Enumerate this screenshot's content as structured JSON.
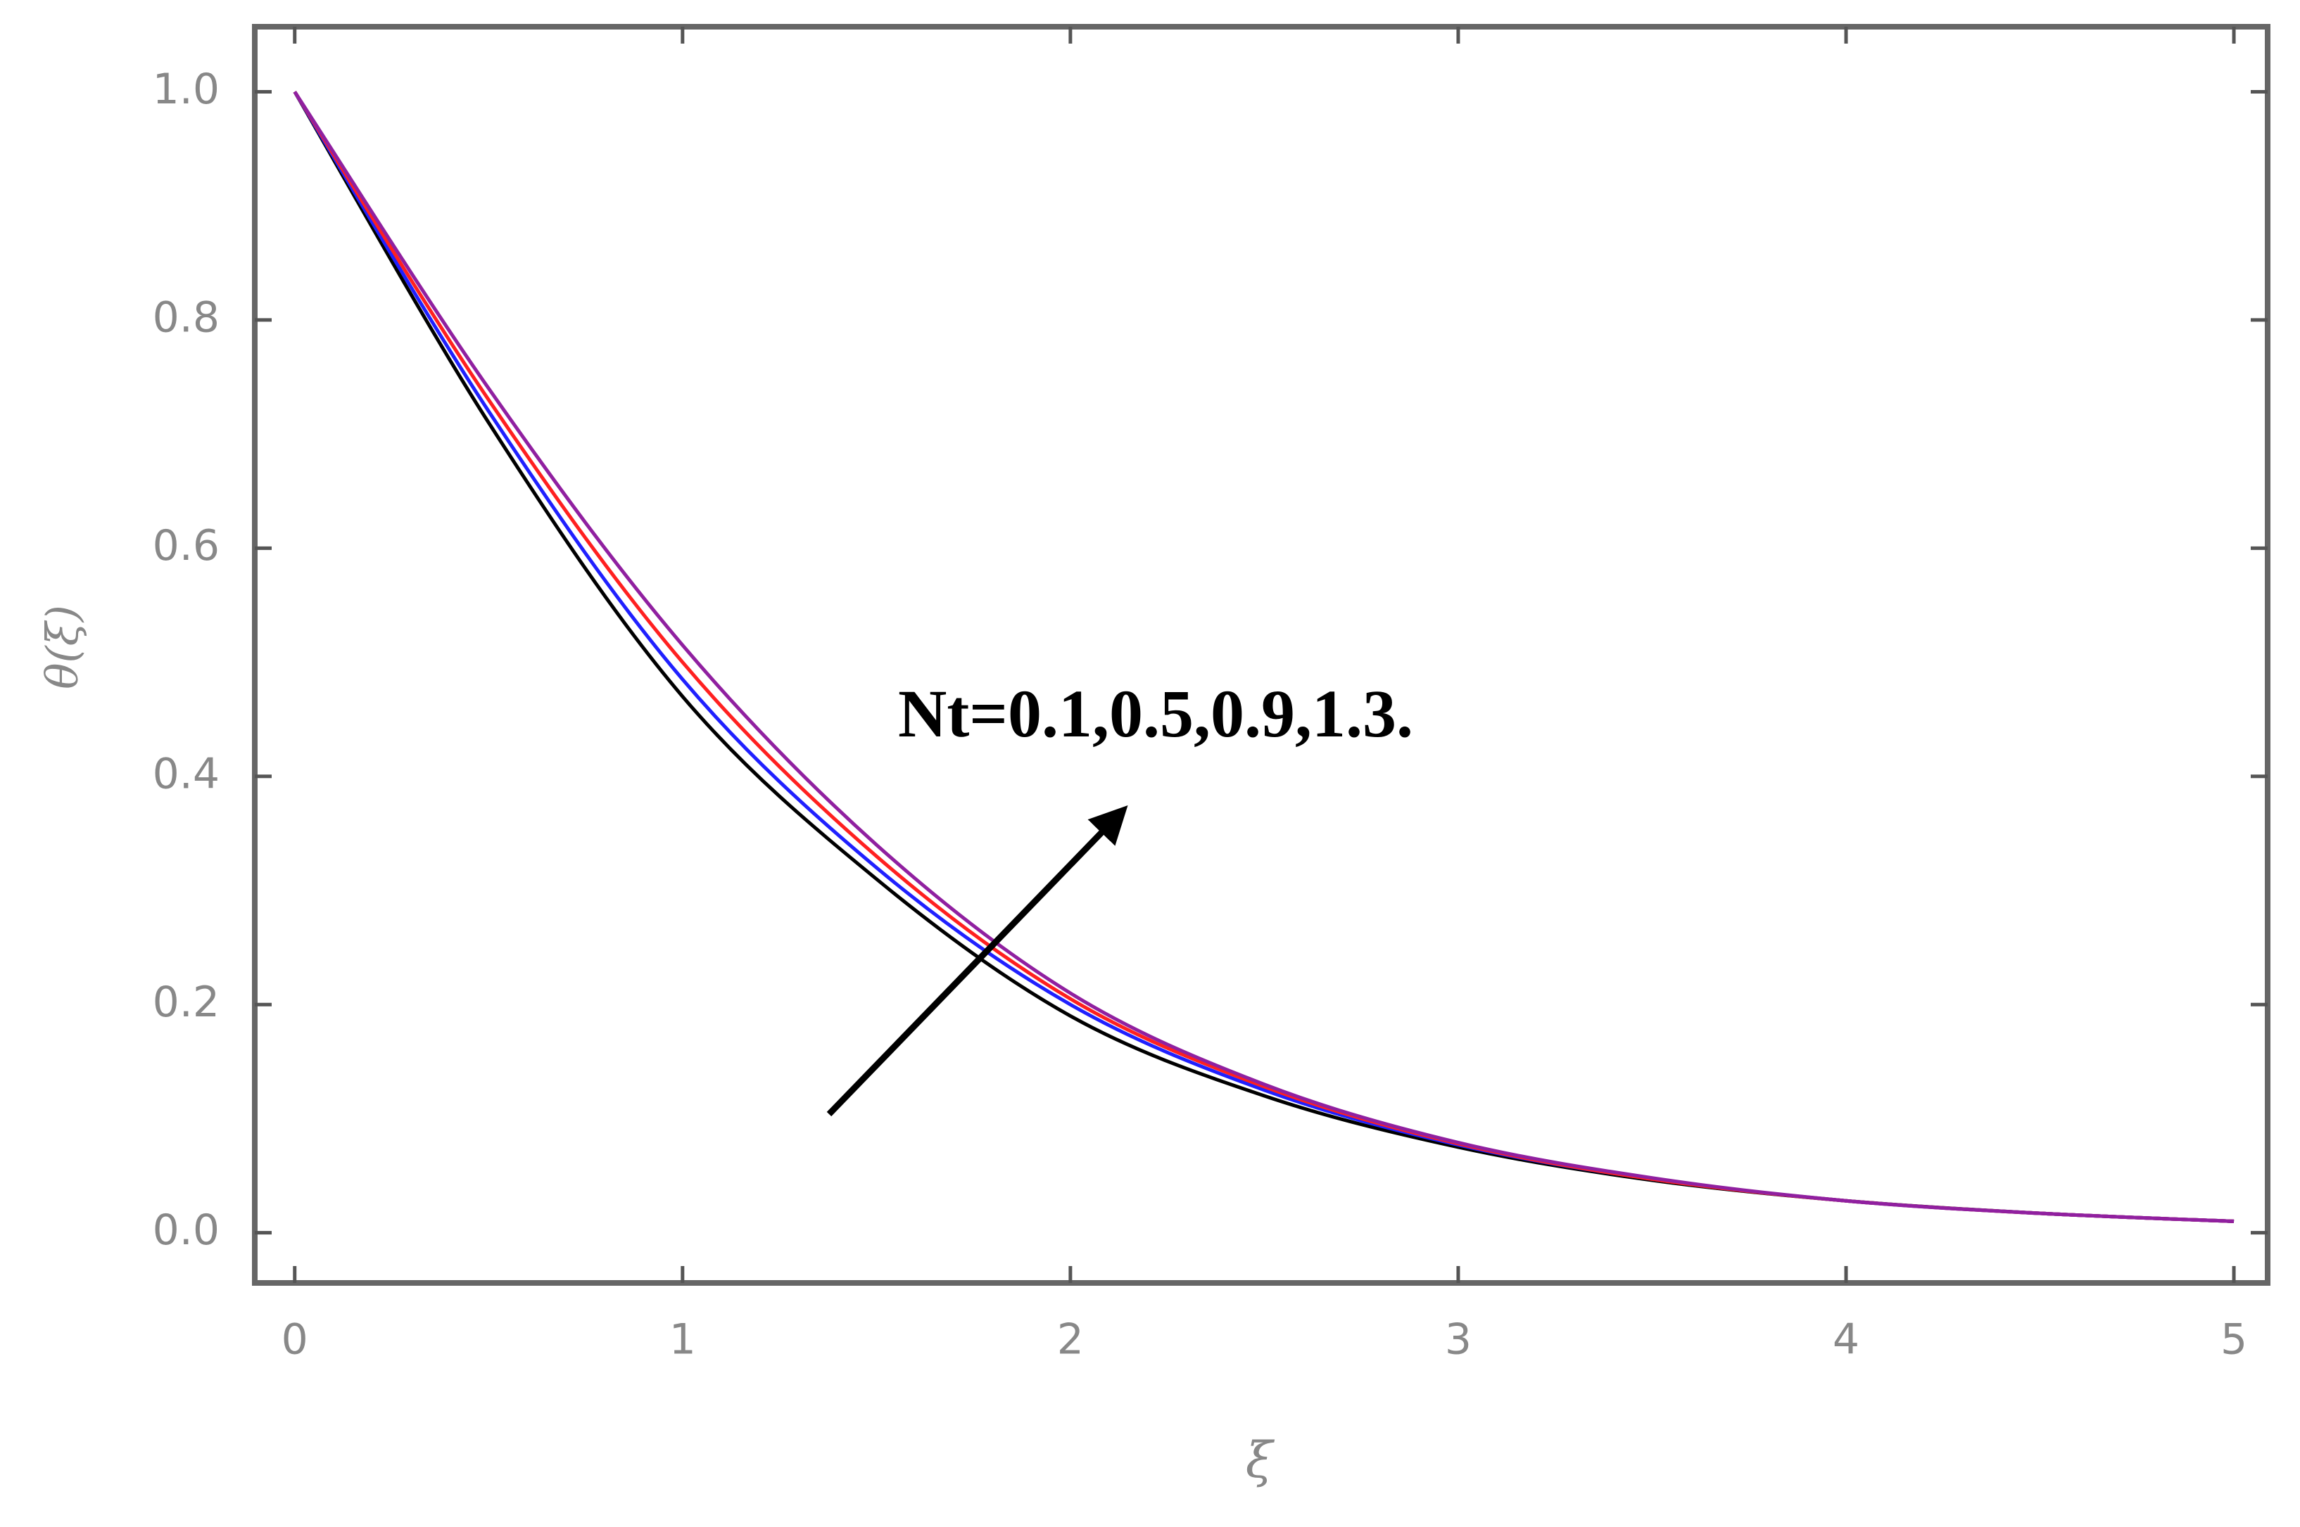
{
  "chart_data": {
    "type": "line",
    "x": [
      0,
      0.5,
      1,
      1.5,
      2,
      2.5,
      3,
      3.5,
      4,
      4.5,
      5
    ],
    "series": [
      {
        "color": "#000000",
        "values": [
          1.0,
          0.71,
          0.47,
          0.31,
          0.19,
          0.12,
          0.075,
          0.046,
          0.028,
          0.017,
          0.01
        ]
      },
      {
        "color": "#2020ff",
        "values": [
          1.0,
          0.72,
          0.485,
          0.32,
          0.2,
          0.125,
          0.077,
          0.047,
          0.028,
          0.017,
          0.01
        ]
      },
      {
        "color": "#ff2020",
        "values": [
          1.0,
          0.73,
          0.5,
          0.33,
          0.205,
          0.128,
          0.078,
          0.047,
          0.028,
          0.017,
          0.01
        ]
      },
      {
        "color": "#9020a0",
        "values": [
          1.0,
          0.74,
          0.515,
          0.34,
          0.21,
          0.13,
          0.079,
          0.048,
          0.028,
          0.017,
          0.01
        ]
      }
    ],
    "xlabel": "ξ",
    "ylabel": "θ(ξ)",
    "annotation": "Nt=0.1,0.5,0.9,1.3.",
    "xlim": [
      -0.103,
      5.087
    ],
    "ylim": [
      -0.044,
      1.057
    ],
    "xticks": [
      0,
      1,
      2,
      3,
      4,
      5
    ],
    "yticks": [
      {
        "value": 0,
        "label": "0.0"
      },
      {
        "value": 0.2,
        "label": "0.2"
      },
      {
        "value": 0.4,
        "label": "0.4"
      },
      {
        "value": 0.6,
        "label": "0.6"
      },
      {
        "value": 0.8,
        "label": "0.8"
      },
      {
        "value": 1,
        "label": "1.0"
      }
    ]
  }
}
